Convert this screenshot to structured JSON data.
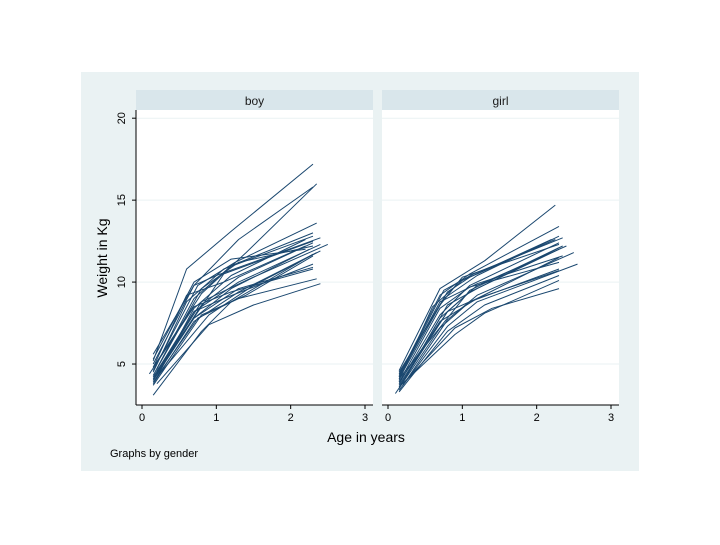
{
  "chart_data": {
    "type": "line",
    "note": "Graphs by gender",
    "xlabel": "Age in years",
    "ylabel": "Weight in Kg",
    "xlim": [
      0,
      3
    ],
    "ylim": [
      2.5,
      20.5
    ],
    "xticks": [
      0,
      1,
      2,
      3
    ],
    "yticks": [
      5,
      10,
      15,
      20
    ],
    "grid": true,
    "colors": {
      "outer_bg": "#eaf2f3",
      "panel_bg": "#ffffff",
      "strip_bg": "#d9e6eb",
      "line": "#1a476f",
      "grid": "#eaf2f3"
    },
    "panels": [
      {
        "title": "boy",
        "series": [
          {
            "x": [
              0.15,
              0.6,
              1.2,
              2.3
            ],
            "y": [
              5.2,
              10.8,
              13.1,
              17.2
            ]
          },
          {
            "x": [
              0.15,
              0.7,
              1.3,
              2.3
            ],
            "y": [
              5.0,
              9.8,
              12.6,
              15.8
            ]
          },
          {
            "x": [
              0.15,
              0.8,
              1.4,
              2.35
            ],
            "y": [
              4.8,
              9.3,
              11.8,
              16.0
            ]
          },
          {
            "x": [
              0.15,
              0.75,
              1.25,
              2.35
            ],
            "y": [
              4.6,
              9.8,
              11.2,
              13.6
            ]
          },
          {
            "x": [
              0.15,
              0.7,
              1.2,
              2.3
            ],
            "y": [
              4.3,
              9.0,
              11.0,
              13.0
            ]
          },
          {
            "x": [
              0.15,
              0.6,
              1.1,
              2.3
            ],
            "y": [
              4.5,
              8.8,
              10.8,
              12.8
            ]
          },
          {
            "x": [
              0.2,
              0.7,
              1.2,
              2.2
            ],
            "y": [
              4.2,
              8.4,
              10.4,
              12.6
            ]
          },
          {
            "x": [
              0.15,
              0.8,
              1.3,
              2.3
            ],
            "y": [
              4.0,
              8.6,
              10.3,
              12.4
            ]
          },
          {
            "x": [
              0.2,
              0.7,
              1.3,
              2.4
            ],
            "y": [
              4.4,
              8.2,
              10.0,
              12.3
            ]
          },
          {
            "x": [
              0.15,
              0.7,
              1.2,
              2.25
            ],
            "y": [
              4.0,
              7.8,
              9.6,
              12.0
            ]
          },
          {
            "x": [
              0.15,
              0.7,
              1.3,
              2.35
            ],
            "y": [
              3.8,
              7.6,
              9.4,
              11.8
            ]
          },
          {
            "x": [
              0.15,
              0.8,
              1.4,
              2.3
            ],
            "y": [
              3.7,
              8.0,
              9.2,
              11.6
            ]
          },
          {
            "x": [
              0.2,
              0.9,
              1.5,
              2.4
            ],
            "y": [
              4.2,
              8.0,
              9.8,
              11.9
            ]
          },
          {
            "x": [
              0.2,
              0.8,
              1.1,
              2.3
            ],
            "y": [
              4.6,
              8.5,
              10.5,
              12.5
            ]
          },
          {
            "x": [
              0.15,
              0.8,
              1.4,
              2.5
            ],
            "y": [
              4.1,
              8.8,
              10.1,
              12.3
            ]
          },
          {
            "x": [
              0.2,
              0.8,
              1.3,
              2.3
            ],
            "y": [
              4.7,
              9.6,
              11.2,
              12.2
            ]
          },
          {
            "x": [
              0.15,
              0.7,
              1.2,
              2.2
            ],
            "y": [
              5.3,
              10.0,
              11.4,
              12.0
            ]
          },
          {
            "x": [
              0.1,
              0.7,
              1.2,
              2.3
            ],
            "y": [
              4.4,
              8.5,
              9.4,
              10.8
            ]
          },
          {
            "x": [
              0.15,
              0.75,
              1.3,
              2.35
            ],
            "y": [
              3.9,
              7.8,
              9.0,
              10.2
            ]
          },
          {
            "x": [
              0.2,
              0.9,
              1.5,
              2.4
            ],
            "y": [
              3.8,
              7.4,
              8.6,
              9.9
            ]
          },
          {
            "x": [
              0.15,
              0.8,
              1.2,
              2.3
            ],
            "y": [
              3.1,
              7.0,
              8.8,
              11.7
            ]
          },
          {
            "x": [
              0.15,
              0.7,
              1.0,
              2.4
            ],
            "y": [
              5.6,
              9.8,
              10.4,
              12.7
            ]
          },
          {
            "x": [
              0.15,
              0.6,
              1.1,
              2.2
            ],
            "y": [
              4.8,
              9.2,
              10.0,
              12.2
            ]
          },
          {
            "x": [
              0.2,
              0.7,
              1.3,
              2.3
            ],
            "y": [
              4.5,
              7.8,
              9.6,
              10.9
            ]
          },
          {
            "x": [
              0.15,
              0.7,
              1.1,
              2.3
            ],
            "y": [
              4.2,
              8.2,
              9.0,
              11.1
            ]
          }
        ]
      },
      {
        "title": "girl",
        "series": [
          {
            "x": [
              0.15,
              0.7,
              1.3,
              2.25
            ],
            "y": [
              4.6,
              9.6,
              11.3,
              14.7
            ]
          },
          {
            "x": [
              0.15,
              0.7,
              1.1,
              2.3
            ],
            "y": [
              4.3,
              9.2,
              10.5,
              13.4
            ]
          },
          {
            "x": [
              0.15,
              0.75,
              1.2,
              2.3
            ],
            "y": [
              4.1,
              9.0,
              10.4,
              12.8
            ]
          },
          {
            "x": [
              0.15,
              0.8,
              1.1,
              2.25
            ],
            "y": [
              4.4,
              9.4,
              10.3,
              12.6
            ]
          },
          {
            "x": [
              0.15,
              0.6,
              1.0,
              2.2
            ],
            "y": [
              4.0,
              8.5,
              10.1,
              12.6
            ]
          },
          {
            "x": [
              0.15,
              0.7,
              1.1,
              2.3
            ],
            "y": [
              3.8,
              8.0,
              9.8,
              12.4
            ]
          },
          {
            "x": [
              0.15,
              0.8,
              1.2,
              2.4
            ],
            "y": [
              3.6,
              8.2,
              9.8,
              12.2
            ]
          },
          {
            "x": [
              0.2,
              0.8,
              1.2,
              2.3
            ],
            "y": [
              3.9,
              8.6,
              9.6,
              12.1
            ]
          },
          {
            "x": [
              0.15,
              0.7,
              1.1,
              2.3
            ],
            "y": [
              3.5,
              7.8,
              9.4,
              12.0
            ]
          },
          {
            "x": [
              0.15,
              0.7,
              1.2,
              2.35
            ],
            "y": [
              4.2,
              8.8,
              9.9,
              11.6
            ]
          },
          {
            "x": [
              0.15,
              0.7,
              1.2,
              2.3
            ],
            "y": [
              3.7,
              7.6,
              9.0,
              11.5
            ]
          },
          {
            "x": [
              0.15,
              0.8,
              1.2,
              2.55
            ],
            "y": [
              3.4,
              7.3,
              8.8,
              11.1
            ]
          },
          {
            "x": [
              0.15,
              0.8,
              1.2,
              2.3
            ],
            "y": [
              3.9,
              8.2,
              9.0,
              10.7
            ]
          },
          {
            "x": [
              0.15,
              0.8,
              1.3,
              2.3
            ],
            "y": [
              3.3,
              7.0,
              8.6,
              10.4
            ]
          },
          {
            "x": [
              0.15,
              0.9,
              1.3,
              2.3
            ],
            "y": [
              3.6,
              6.8,
              8.1,
              10.1
            ]
          },
          {
            "x": [
              0.2,
              0.9,
              1.4,
              2.3
            ],
            "y": [
              3.8,
              7.2,
              8.4,
              9.6
            ]
          },
          {
            "x": [
              0.15,
              0.7,
              1.0,
              2.3
            ],
            "y": [
              4.5,
              8.6,
              10.3,
              12.3
            ]
          },
          {
            "x": [
              0.15,
              0.8,
              1.1,
              2.35
            ],
            "y": [
              4.1,
              7.8,
              9.5,
              12.2
            ]
          },
          {
            "x": [
              0.1,
              0.7,
              1.1,
              2.3
            ],
            "y": [
              3.2,
              7.2,
              8.8,
              10.8
            ]
          },
          {
            "x": [
              0.2,
              0.8,
              1.2,
              2.5
            ],
            "y": [
              3.7,
              7.7,
              9.2,
              11.8
            ]
          },
          {
            "x": [
              0.15,
              0.75,
              1.15,
              2.35
            ],
            "y": [
              4.2,
              9.5,
              10.5,
              12.7
            ]
          },
          {
            "x": [
              0.15,
              0.7,
              1.1,
              2.3
            ],
            "y": [
              3.9,
              8.4,
              9.7,
              11.2
            ]
          }
        ]
      }
    ]
  }
}
